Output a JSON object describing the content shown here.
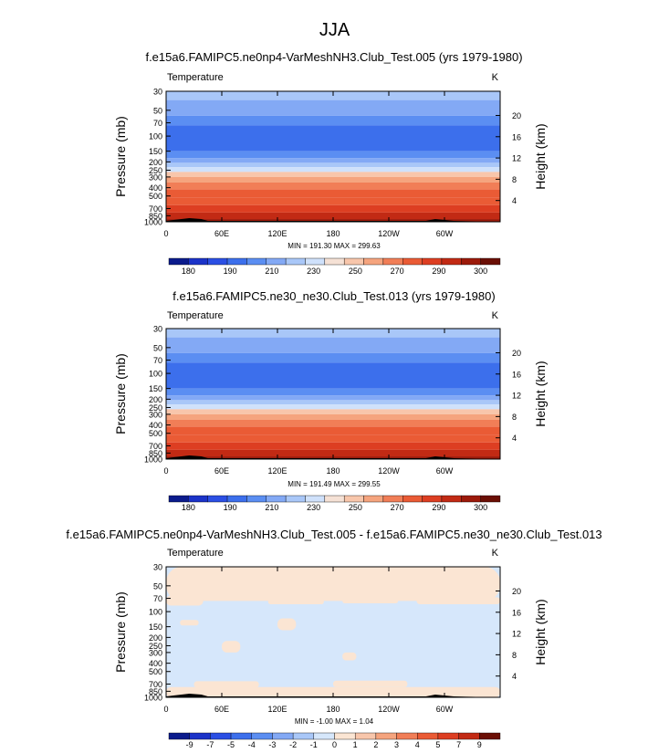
{
  "page_title": "JJA",
  "chart_data": [
    {
      "type": "heatmap",
      "title": "f.e15a6.FAMIPC5.ne0np4-VarMeshNH3.Club_Test.005 (yrs 1979-1980)",
      "variable_label": "Temperature",
      "units": "K",
      "ylabel": "Pressure (mb)",
      "y2label": "Height (km)",
      "x_ticks": [
        "0",
        "60E",
        "120E",
        "180",
        "120W",
        "60W"
      ],
      "x_tick_values": [
        0,
        60,
        120,
        180,
        240,
        300
      ],
      "xlim": [
        0,
        360
      ],
      "y_ticks": [
        "30",
        "50",
        "70",
        "100",
        "150",
        "200",
        "250",
        "300",
        "400",
        "500",
        "700",
        "850",
        "1000"
      ],
      "y_tick_values": [
        30,
        50,
        70,
        100,
        150,
        200,
        250,
        300,
        400,
        500,
        700,
        850,
        1000
      ],
      "ylim": [
        1000,
        30
      ],
      "y_scale": "log",
      "height_ticks": [
        "4",
        "8",
        "12",
        "16",
        "20"
      ],
      "height_tick_values": [
        4,
        8,
        12,
        16,
        20
      ],
      "stats_text": "MIN = 191.30   MAX = 299.63",
      "min": 191.3,
      "max": 299.63,
      "profile": [
        {
          "p_top": 30,
          "p_bottom": 38,
          "value": 225
        },
        {
          "p_top": 38,
          "p_bottom": 58,
          "value": 215
        },
        {
          "p_top": 58,
          "p_bottom": 75,
          "value": 205
        },
        {
          "p_top": 75,
          "p_bottom": 150,
          "value": 197
        },
        {
          "p_top": 150,
          "p_bottom": 180,
          "value": 205
        },
        {
          "p_top": 180,
          "p_bottom": 205,
          "value": 215
        },
        {
          "p_top": 205,
          "p_bottom": 230,
          "value": 225
        },
        {
          "p_top": 230,
          "p_bottom": 262,
          "value": 235
        },
        {
          "p_top": 262,
          "p_bottom": 300,
          "value": 245
        },
        {
          "p_top": 300,
          "p_bottom": 348,
          "value": 255
        },
        {
          "p_top": 348,
          "p_bottom": 420,
          "value": 262
        },
        {
          "p_top": 420,
          "p_bottom": 520,
          "value": 268
        },
        {
          "p_top": 520,
          "p_bottom": 640,
          "value": 275
        },
        {
          "p_top": 640,
          "p_bottom": 780,
          "value": 282
        },
        {
          "p_top": 780,
          "p_bottom": 930,
          "value": 288
        },
        {
          "p_top": 930,
          "p_bottom": 1000,
          "value": 293
        }
      ],
      "colorbar": {
        "labels": [
          "180",
          "190",
          "210",
          "230",
          "250",
          "270",
          "290",
          "300"
        ],
        "colors": [
          "#0b1b8c",
          "#1b33c8",
          "#2b4fe4",
          "#3c6fec",
          "#5b8ef2",
          "#83a9f5",
          "#a9c7f8",
          "#cfe1fb",
          "#f5e1d5",
          "#f8c6ab",
          "#f5a47e",
          "#f17e57",
          "#ea5b35",
          "#dd3e22",
          "#c22a14",
          "#9c1a0a",
          "#6b0f05"
        ]
      }
    },
    {
      "type": "heatmap",
      "title": "f.e15a6.FAMIPC5.ne30_ne30.Club_Test.013 (yrs 1979-1980)",
      "variable_label": "Temperature",
      "units": "K",
      "ylabel": "Pressure (mb)",
      "y2label": "Height (km)",
      "x_ticks": [
        "0",
        "60E",
        "120E",
        "180",
        "120W",
        "60W"
      ],
      "x_tick_values": [
        0,
        60,
        120,
        180,
        240,
        300
      ],
      "xlim": [
        0,
        360
      ],
      "y_ticks": [
        "30",
        "50",
        "70",
        "100",
        "150",
        "200",
        "250",
        "300",
        "400",
        "500",
        "700",
        "850",
        "1000"
      ],
      "y_tick_values": [
        30,
        50,
        70,
        100,
        150,
        200,
        250,
        300,
        400,
        500,
        700,
        850,
        1000
      ],
      "ylim": [
        1000,
        30
      ],
      "y_scale": "log",
      "height_ticks": [
        "4",
        "8",
        "12",
        "16",
        "20"
      ],
      "height_tick_values": [
        4,
        8,
        12,
        16,
        20
      ],
      "stats_text": "MIN = 191.49   MAX = 299.55",
      "min": 191.49,
      "max": 299.55,
      "profile": [
        {
          "p_top": 30,
          "p_bottom": 38,
          "value": 225
        },
        {
          "p_top": 38,
          "p_bottom": 58,
          "value": 215
        },
        {
          "p_top": 58,
          "p_bottom": 75,
          "value": 205
        },
        {
          "p_top": 75,
          "p_bottom": 150,
          "value": 197
        },
        {
          "p_top": 150,
          "p_bottom": 180,
          "value": 205
        },
        {
          "p_top": 180,
          "p_bottom": 205,
          "value": 215
        },
        {
          "p_top": 205,
          "p_bottom": 230,
          "value": 225
        },
        {
          "p_top": 230,
          "p_bottom": 262,
          "value": 235
        },
        {
          "p_top": 262,
          "p_bottom": 300,
          "value": 245
        },
        {
          "p_top": 300,
          "p_bottom": 348,
          "value": 255
        },
        {
          "p_top": 348,
          "p_bottom": 420,
          "value": 262
        },
        {
          "p_top": 420,
          "p_bottom": 520,
          "value": 268
        },
        {
          "p_top": 520,
          "p_bottom": 640,
          "value": 275
        },
        {
          "p_top": 640,
          "p_bottom": 780,
          "value": 282
        },
        {
          "p_top": 780,
          "p_bottom": 930,
          "value": 288
        },
        {
          "p_top": 930,
          "p_bottom": 1000,
          "value": 293
        }
      ],
      "colorbar": {
        "labels": [
          "180",
          "190",
          "210",
          "230",
          "250",
          "270",
          "290",
          "300"
        ],
        "colors": [
          "#0b1b8c",
          "#1b33c8",
          "#2b4fe4",
          "#3c6fec",
          "#5b8ef2",
          "#83a9f5",
          "#a9c7f8",
          "#cfe1fb",
          "#f5e1d5",
          "#f8c6ab",
          "#f5a47e",
          "#f17e57",
          "#ea5b35",
          "#dd3e22",
          "#c22a14",
          "#9c1a0a",
          "#6b0f05"
        ]
      }
    },
    {
      "type": "heatmap",
      "title": "f.e15a6.FAMIPC5.ne0np4-VarMeshNH3.Club_Test.005 - f.e15a6.FAMIPC5.ne30_ne30.Club_Test.013",
      "variable_label": "Temperature",
      "units": "K",
      "ylabel": "Pressure (mb)",
      "y2label": "Height (km)",
      "x_ticks": [
        "0",
        "60E",
        "120E",
        "180",
        "120W",
        "60W"
      ],
      "x_tick_values": [
        0,
        60,
        120,
        180,
        240,
        300
      ],
      "xlim": [
        0,
        360
      ],
      "y_ticks": [
        "30",
        "50",
        "70",
        "100",
        "150",
        "200",
        "250",
        "300",
        "400",
        "500",
        "700",
        "850",
        "1000"
      ],
      "y_tick_values": [
        30,
        50,
        70,
        100,
        150,
        200,
        250,
        300,
        400,
        500,
        700,
        850,
        1000
      ],
      "ylim": [
        1000,
        30
      ],
      "y_scale": "log",
      "height_ticks": [
        "4",
        "8",
        "12",
        "16",
        "20"
      ],
      "height_tick_values": [
        4,
        8,
        12,
        16,
        20
      ],
      "stats_text": "MIN =  -1.00   MAX =   1.04",
      "min": -1.0,
      "max": 1.04,
      "background_value": -0.5,
      "positive_regions": [
        {
          "lon": [
            0,
            360
          ],
          "p": [
            30,
            75
          ],
          "value": 0.5
        },
        {
          "lon": [
            0,
            40
          ],
          "p": [
            65,
            85
          ],
          "value": 0.5
        },
        {
          "lon": [
            110,
            170
          ],
          "p": [
            72,
            82
          ],
          "value": 0.5
        },
        {
          "lon": [
            190,
            250
          ],
          "p": [
            70,
            80
          ],
          "value": 0.5
        },
        {
          "lon": [
            270,
            360
          ],
          "p": [
            68,
            82
          ],
          "value": 0.5
        },
        {
          "lon": [
            15,
            35
          ],
          "p": [
            125,
            145
          ],
          "value": 0.5
        },
        {
          "lon": [
            60,
            80
          ],
          "p": [
            220,
            300
          ],
          "value": 0.5
        },
        {
          "lon": [
            120,
            140
          ],
          "p": [
            120,
            165
          ],
          "value": 0.5
        },
        {
          "lon": [
            190,
            205
          ],
          "p": [
            300,
            370
          ],
          "value": 0.5
        },
        {
          "lon": [
            0,
            360
          ],
          "p": [
            760,
            1000
          ],
          "value": 0.5
        },
        {
          "lon": [
            30,
            100
          ],
          "p": [
            650,
            770
          ],
          "value": 0.5
        },
        {
          "lon": [
            180,
            260
          ],
          "p": [
            640,
            760
          ],
          "value": 0.5
        }
      ],
      "colorbar": {
        "labels": [
          "-9",
          "-7",
          "-5",
          "-4",
          "-3",
          "-2",
          "-1",
          "0",
          "1",
          "2",
          "3",
          "4",
          "5",
          "7",
          "9"
        ],
        "colors": [
          "#0b1b8c",
          "#1b33c8",
          "#2b4fe4",
          "#3c6fec",
          "#5b8ef2",
          "#83a9f5",
          "#a9c7f8",
          "#d6e7fb",
          "#fbe5d3",
          "#f8c6ab",
          "#f5a47e",
          "#f17e57",
          "#ea5b35",
          "#dd3e22",
          "#c22a14",
          "#6b0f05"
        ]
      }
    }
  ]
}
